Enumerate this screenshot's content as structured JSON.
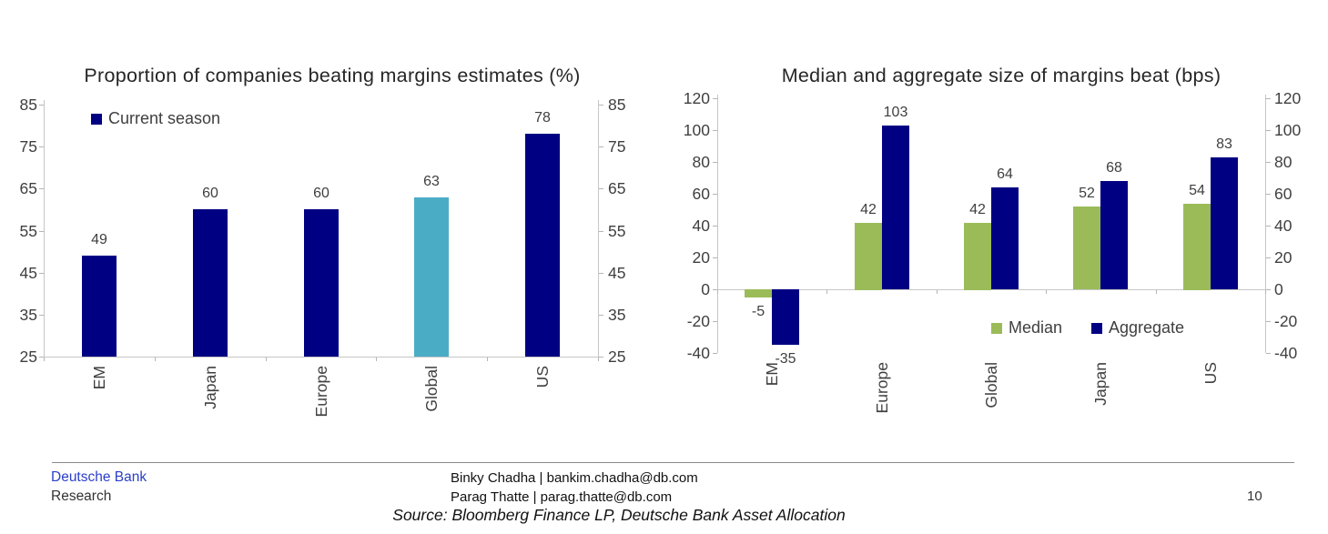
{
  "page": {
    "background": "#ffffff"
  },
  "colors": {
    "navy": "#000082",
    "teal": "#4BACC6",
    "green": "#9BBB59",
    "axis_text": "#3f3f3f",
    "brand_blue": "#2B3FC8"
  },
  "chart_data": [
    {
      "type": "bar",
      "title": "Proportion of companies beating margins estimates (%)",
      "categories": [
        "EM",
        "Japan",
        "Europe",
        "Global",
        "US"
      ],
      "series": [
        {
          "name": "Current season",
          "values": [
            49,
            60,
            60,
            63,
            78
          ]
        }
      ],
      "bar_colors": [
        "#000082",
        "#000082",
        "#000082",
        "#4BACC6",
        "#000082"
      ],
      "legend": {
        "label": "Current season",
        "color": "#000082",
        "position": "top-left-inside"
      },
      "ylim": [
        25,
        85
      ],
      "yticks": [
        25,
        35,
        45,
        55,
        65,
        75,
        85
      ],
      "axes": "mirrored-left-right",
      "grid": false
    },
    {
      "type": "bar",
      "title": "Median and aggregate size of margins beat (bps)",
      "categories": [
        "EM",
        "Europe",
        "Global",
        "Japan",
        "US"
      ],
      "series": [
        {
          "name": "Median",
          "color": "#9BBB59",
          "values": [
            -5,
            42,
            42,
            52,
            54
          ]
        },
        {
          "name": "Aggregate",
          "color": "#000082",
          "values": [
            -35,
            103,
            64,
            68,
            83
          ]
        }
      ],
      "legend_position": "bottom-right-inside",
      "ylim": [
        -40,
        120
      ],
      "yticks": [
        -40,
        -20,
        0,
        20,
        40,
        60,
        80,
        100,
        120
      ],
      "axes": "mirrored-left-right",
      "grid": false
    }
  ],
  "footer": {
    "brand_line1": "Deutsche Bank",
    "brand_line2": "Research",
    "contact_line1": "Binky Chadha | bankim.chadha@db.com",
    "contact_line2": "Parag Thatte | parag.thatte@db.com",
    "source": "Source: Bloomberg Finance LP, Deutsche Bank Asset Allocation",
    "page_number": "10"
  }
}
